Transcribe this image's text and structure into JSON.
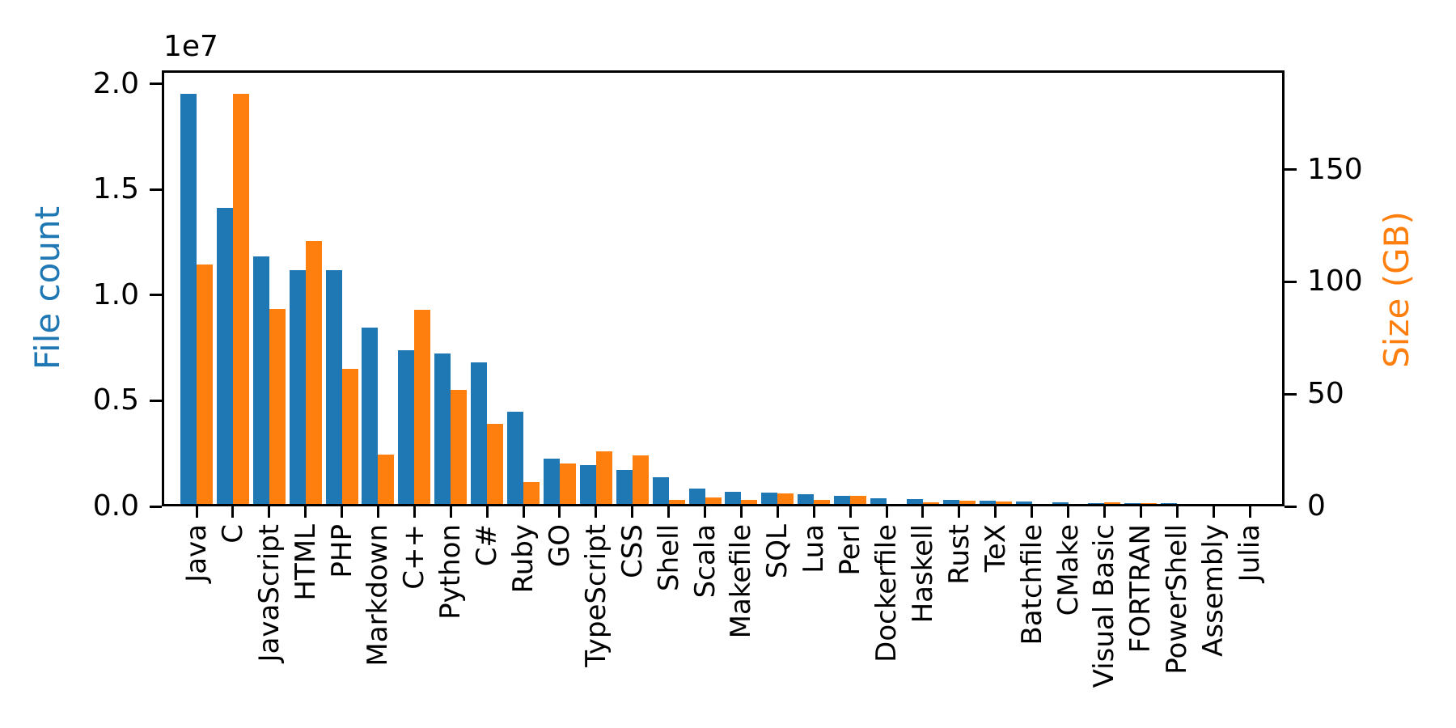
{
  "chart_data": {
    "type": "bar",
    "title": "",
    "grid": false,
    "legend": null,
    "categories": [
      "Java",
      "C",
      "JavaScript",
      "HTML",
      "PHP",
      "Markdown",
      "C++",
      "Python",
      "C#",
      "Ruby",
      "GO",
      "TypeScript",
      "CSS",
      "Shell",
      "Scala",
      "Makefile",
      "SQL",
      "Lua",
      "Perl",
      "Dockerfile",
      "Haskell",
      "Rust",
      "TeX",
      "Batchfile",
      "CMake",
      "Visual Basic",
      "FORTRAN",
      "PowerShell",
      "Assembly",
      "Julia"
    ],
    "series": [
      {
        "name": "File count",
        "axis": "left",
        "color": "#1f77b4",
        "values": [
          19548190,
          14143113,
          11839883,
          11178557,
          11177610,
          8464626,
          7380520,
          7226626,
          6811652,
          4473331,
          2265436,
          1940406,
          1734406,
          1385648,
          835755,
          679430,
          656671,
          578554,
          497949,
          366505,
          340623,
          322431,
          251015,
          236945,
          175282,
          155652,
          142038,
          136846,
          82905,
          58317
        ]
      },
      {
        "name": "Size (GB)",
        "axis": "right",
        "color": "#ff7f0e",
        "values": [
          107.7,
          183.83,
          87.82,
          118.12,
          61.41,
          23.09,
          87.73,
          52.03,
          36.83,
          10.95,
          19.28,
          24.59,
          22.67,
          3.01,
          3.87,
          2.92,
          5.67,
          2.81,
          4.7,
          0.71,
          1.85,
          2.68,
          2.15,
          0.7,
          0.54,
          1.91,
          1.62,
          0.69,
          0.78,
          0.29
        ]
      }
    ],
    "left_axis": {
      "label": "File count",
      "color": "#1f77b4",
      "offset_text": "1e7",
      "tick_labels": [
        "0.0",
        "0.5",
        "1.0",
        "1.5",
        "2.0"
      ],
      "tick_values": [
        0,
        5000000,
        10000000,
        15000000,
        20000000
      ],
      "range": [
        0,
        20650000
      ]
    },
    "right_axis": {
      "label": "Size (GB)",
      "color": "#ff7f0e",
      "tick_labels": [
        "0",
        "50",
        "100",
        "150"
      ],
      "tick_values": [
        0,
        50,
        100,
        150
      ],
      "range": [
        0,
        194.2
      ]
    },
    "x_axis": {
      "tick_label_rotation": 90
    }
  }
}
